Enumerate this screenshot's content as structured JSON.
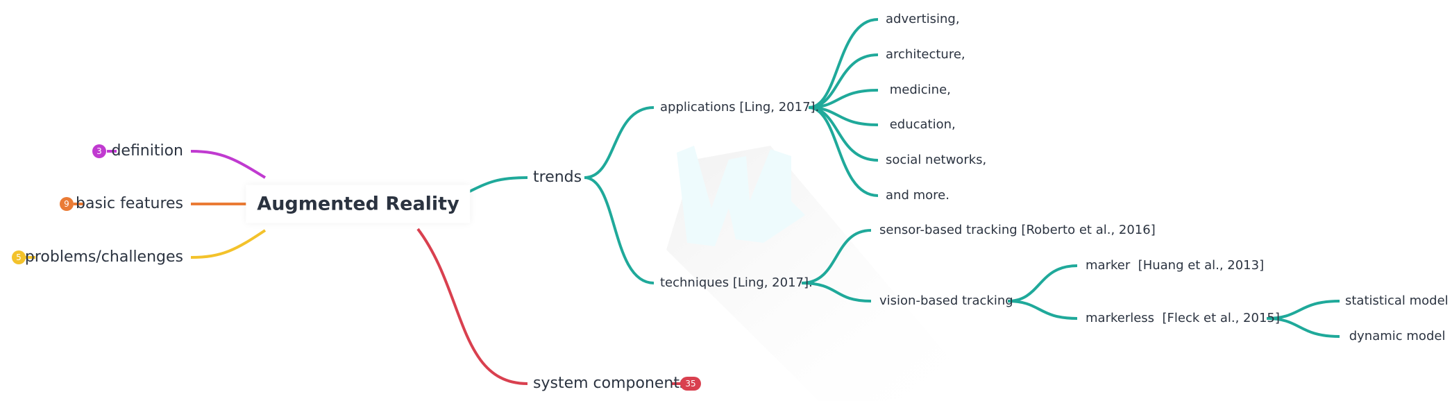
{
  "mindmap": {
    "root": "Augmented Reality",
    "left": [
      {
        "label": "definition",
        "count": "3",
        "color": "#c03ad0"
      },
      {
        "label": "basic features",
        "count": "9",
        "color": "#ea7b35"
      },
      {
        "label": "problems/challenges",
        "count": "5",
        "color": "#f3c22b"
      }
    ],
    "trends": {
      "label": "trends",
      "color": "#1fa99a",
      "applications": {
        "label": "applications [Ling, 2017].",
        "children": [
          "advertising,",
          "architecture,",
          " medicine,",
          " education,",
          "social networks,",
          "and more."
        ]
      },
      "techniques": {
        "label": "techniques [Ling, 2017].",
        "sensor": "sensor-based tracking [Roberto et al., 2016]",
        "vision": {
          "label": "vision-based tracking",
          "marker": "marker  [Huang et al., 2013]",
          "markerless": {
            "label": "markerless  [Fleck et al., 2015]",
            "children": [
              "statistical model",
              " dynamic model"
            ]
          }
        }
      }
    },
    "system_components": {
      "label": "system components",
      "count": "35",
      "color": "#d9404f"
    }
  }
}
